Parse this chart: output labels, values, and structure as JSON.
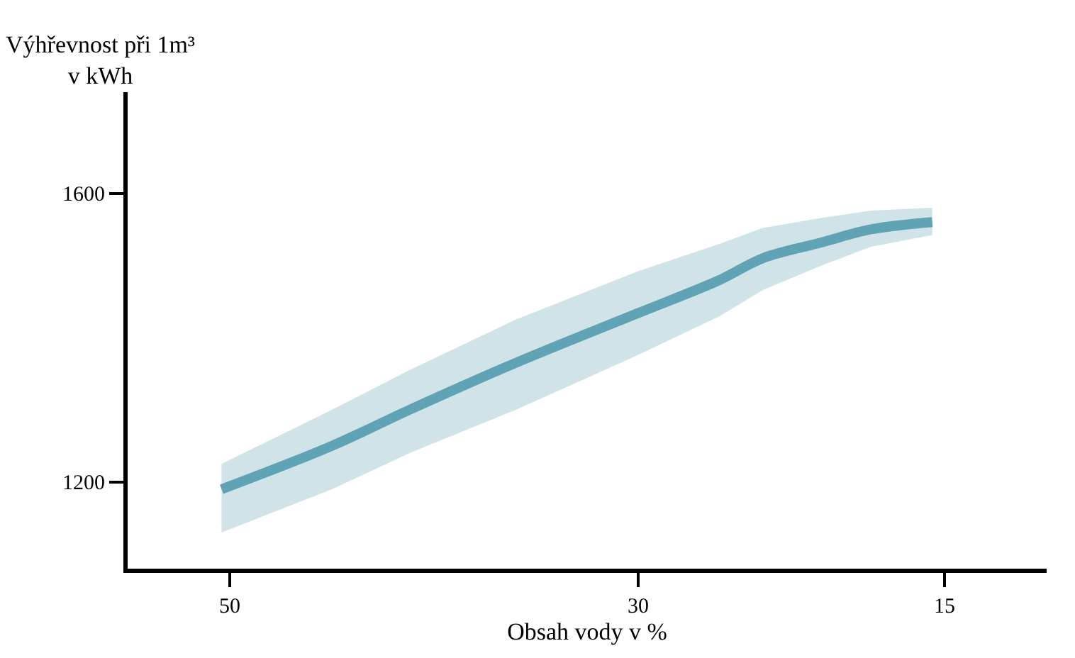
{
  "chart_data": {
    "type": "line",
    "xlabel": "Obsah vody v %",
    "ylabel": "Výhřevnost při 1m³\nv kWh",
    "xlim": [
      55,
      10
    ],
    "xticks": [
      50,
      30,
      15
    ],
    "ylim": [
      1080,
      1740
    ],
    "yticks": [
      1200,
      1600
    ],
    "marker": "none",
    "line_style": "solid",
    "series": [
      {
        "color": "#5fa3b5",
        "x": [
          50.4,
          45,
          41.2,
          36,
          30,
          26,
          23.9,
          21,
          18.6,
          15.6
        ],
        "values": [
          1190,
          1250,
          1300,
          1365,
          1434,
          1480,
          1510,
          1532,
          1550,
          1560
        ],
        "lower": [
          1130,
          1190,
          1240,
          1300,
          1376,
          1430,
          1466,
          1500,
          1526,
          1542
        ],
        "upper": [
          1225,
          1300,
          1355,
          1425,
          1492,
          1530,
          1552,
          1566,
          1576,
          1580
        ]
      }
    ]
  }
}
